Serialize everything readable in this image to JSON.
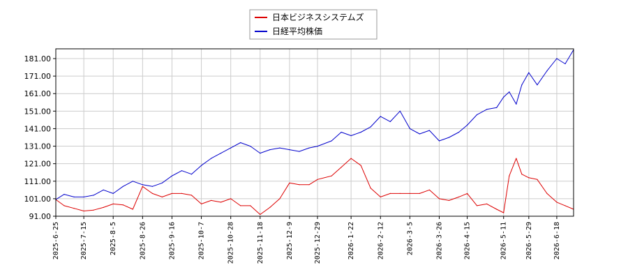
{
  "chart_data": {
    "type": "line",
    "title": "",
    "xlabel": "",
    "ylabel": "",
    "ylim": [
      91.0,
      186.0
    ],
    "yticks": [
      "91.00",
      "101.00",
      "111.00",
      "121.00",
      "131.00",
      "141.00",
      "151.00",
      "161.00",
      "171.00",
      "181.00"
    ],
    "xticks": [
      "2025-6-25",
      "2025-7-15",
      "2025-8-5",
      "2025-8-26",
      "2025-9-16",
      "2025-10-7",
      "2025-10-28",
      "2025-11-18",
      "2025-12-9",
      "2025-12-29",
      "2026-1-22",
      "2026-2-12",
      "2026-3-5",
      "2026-3-26",
      "2026-4-15",
      "2026-5-11",
      "2026-5-29",
      "2026-6-18"
    ],
    "xrange": [
      "2025-6-25",
      "2026-6-30"
    ],
    "grid": true,
    "legend_position": "top-center",
    "series": [
      {
        "name": "日本ビジネスシステムズ",
        "color": "#dd0000",
        "x": [
          "2025-6-25",
          "2025-7-1",
          "2025-7-8",
          "2025-7-15",
          "2025-7-22",
          "2025-7-29",
          "2025-8-5",
          "2025-8-12",
          "2025-8-19",
          "2025-8-26",
          "2025-9-2",
          "2025-9-9",
          "2025-9-16",
          "2025-9-23",
          "2025-9-30",
          "2025-10-7",
          "2025-10-14",
          "2025-10-21",
          "2025-10-28",
          "2025-11-4",
          "2025-11-11",
          "2025-11-18",
          "2025-11-25",
          "2025-12-2",
          "2025-12-9",
          "2025-12-16",
          "2025-12-23",
          "2025-12-29",
          "2026-1-8",
          "2026-1-15",
          "2026-1-22",
          "2026-1-29",
          "2026-2-5",
          "2026-2-12",
          "2026-2-19",
          "2026-2-26",
          "2026-3-5",
          "2026-3-12",
          "2026-3-19",
          "2026-3-26",
          "2026-4-2",
          "2026-4-9",
          "2026-4-15",
          "2026-4-22",
          "2026-4-29",
          "2026-5-6",
          "2026-5-11",
          "2026-5-15",
          "2026-5-20",
          "2026-5-24",
          "2026-5-29",
          "2026-6-4",
          "2026-6-11",
          "2026-6-18",
          "2026-6-24",
          "2026-6-30"
        ],
        "values": [
          100.5,
          97,
          95.5,
          94,
          94.5,
          96,
          98,
          97.5,
          95,
          108,
          104,
          102,
          104,
          104,
          103,
          98,
          100,
          99,
          101,
          97,
          97,
          92,
          96,
          101,
          110,
          109,
          109,
          112,
          114,
          119,
          124,
          120,
          107,
          102,
          104,
          104,
          104,
          104,
          106,
          101,
          100,
          102,
          104,
          97,
          98,
          95,
          93,
          114,
          124,
          115,
          113,
          112,
          104,
          99,
          97,
          95
        ]
      },
      {
        "name": "日経平均株価",
        "color": "#0000cc",
        "x": [
          "2025-6-25",
          "2025-7-1",
          "2025-7-8",
          "2025-7-15",
          "2025-7-22",
          "2025-7-29",
          "2025-8-5",
          "2025-8-12",
          "2025-8-19",
          "2025-8-26",
          "2025-9-2",
          "2025-9-9",
          "2025-9-16",
          "2025-9-23",
          "2025-9-30",
          "2025-10-7",
          "2025-10-14",
          "2025-10-21",
          "2025-10-28",
          "2025-11-4",
          "2025-11-11",
          "2025-11-18",
          "2025-11-25",
          "2025-12-2",
          "2025-12-9",
          "2025-12-16",
          "2025-12-23",
          "2025-12-29",
          "2026-1-8",
          "2026-1-15",
          "2026-1-22",
          "2026-1-29",
          "2026-2-5",
          "2026-2-12",
          "2026-2-19",
          "2026-2-26",
          "2026-3-5",
          "2026-3-12",
          "2026-3-19",
          "2026-3-26",
          "2026-4-2",
          "2026-4-9",
          "2026-4-15",
          "2026-4-22",
          "2026-4-29",
          "2026-5-6",
          "2026-5-11",
          "2026-5-15",
          "2026-5-20",
          "2026-5-24",
          "2026-5-29",
          "2026-6-4",
          "2026-6-11",
          "2026-6-18",
          "2026-6-24",
          "2026-6-30"
        ],
        "values": [
          100.5,
          103.5,
          102,
          102,
          103,
          106,
          104,
          108,
          111,
          109,
          108,
          110,
          114,
          117,
          115,
          120,
          124,
          127,
          130,
          133,
          131,
          127,
          129,
          130,
          129,
          128,
          130,
          131,
          134,
          139,
          137,
          139,
          142,
          148,
          145,
          151,
          141,
          138,
          140,
          134,
          136,
          139,
          143,
          149,
          152,
          153,
          159,
          162,
          155,
          166,
          173,
          166,
          174,
          181,
          178,
          186
        ]
      }
    ]
  }
}
